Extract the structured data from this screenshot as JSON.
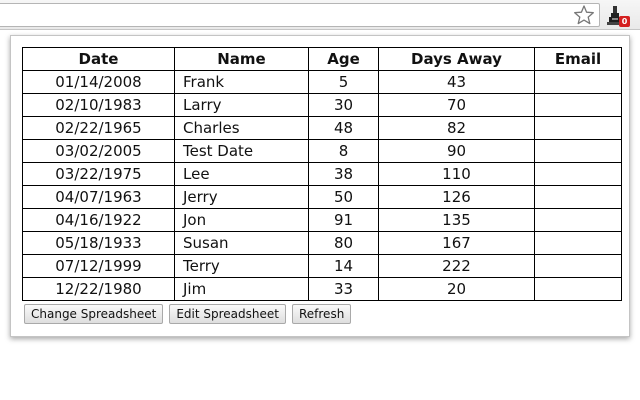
{
  "table": {
    "headers": [
      "Date",
      "Name",
      "Age",
      "Days Away",
      "Email"
    ],
    "rows": [
      [
        "01/14/2008",
        "Frank",
        "5",
        "43",
        ""
      ],
      [
        "02/10/1983",
        "Larry",
        "30",
        "70",
        ""
      ],
      [
        "02/22/1965",
        "Charles",
        "48",
        "82",
        ""
      ],
      [
        "03/02/2005",
        "Test Date",
        "8",
        "90",
        ""
      ],
      [
        "03/22/1975",
        "Lee",
        "38",
        "110",
        ""
      ],
      [
        "04/07/1963",
        "Jerry",
        "50",
        "126",
        ""
      ],
      [
        "04/16/1922",
        "Jon",
        "91",
        "135",
        ""
      ],
      [
        "05/18/1933",
        "Susan",
        "80",
        "167",
        ""
      ],
      [
        "07/12/1999",
        "Terry",
        "14",
        "222",
        ""
      ],
      [
        "12/22/1980",
        "Jim",
        "33",
        "20",
        ""
      ]
    ]
  },
  "buttons": {
    "change": "Change Spreadsheet",
    "edit": "Edit Spreadsheet",
    "refresh": "Refresh"
  },
  "extension": {
    "badge": "0",
    "badge_color": "#d42020"
  },
  "icons": {
    "bookmark": "star-icon",
    "extension": "extension-icon"
  }
}
